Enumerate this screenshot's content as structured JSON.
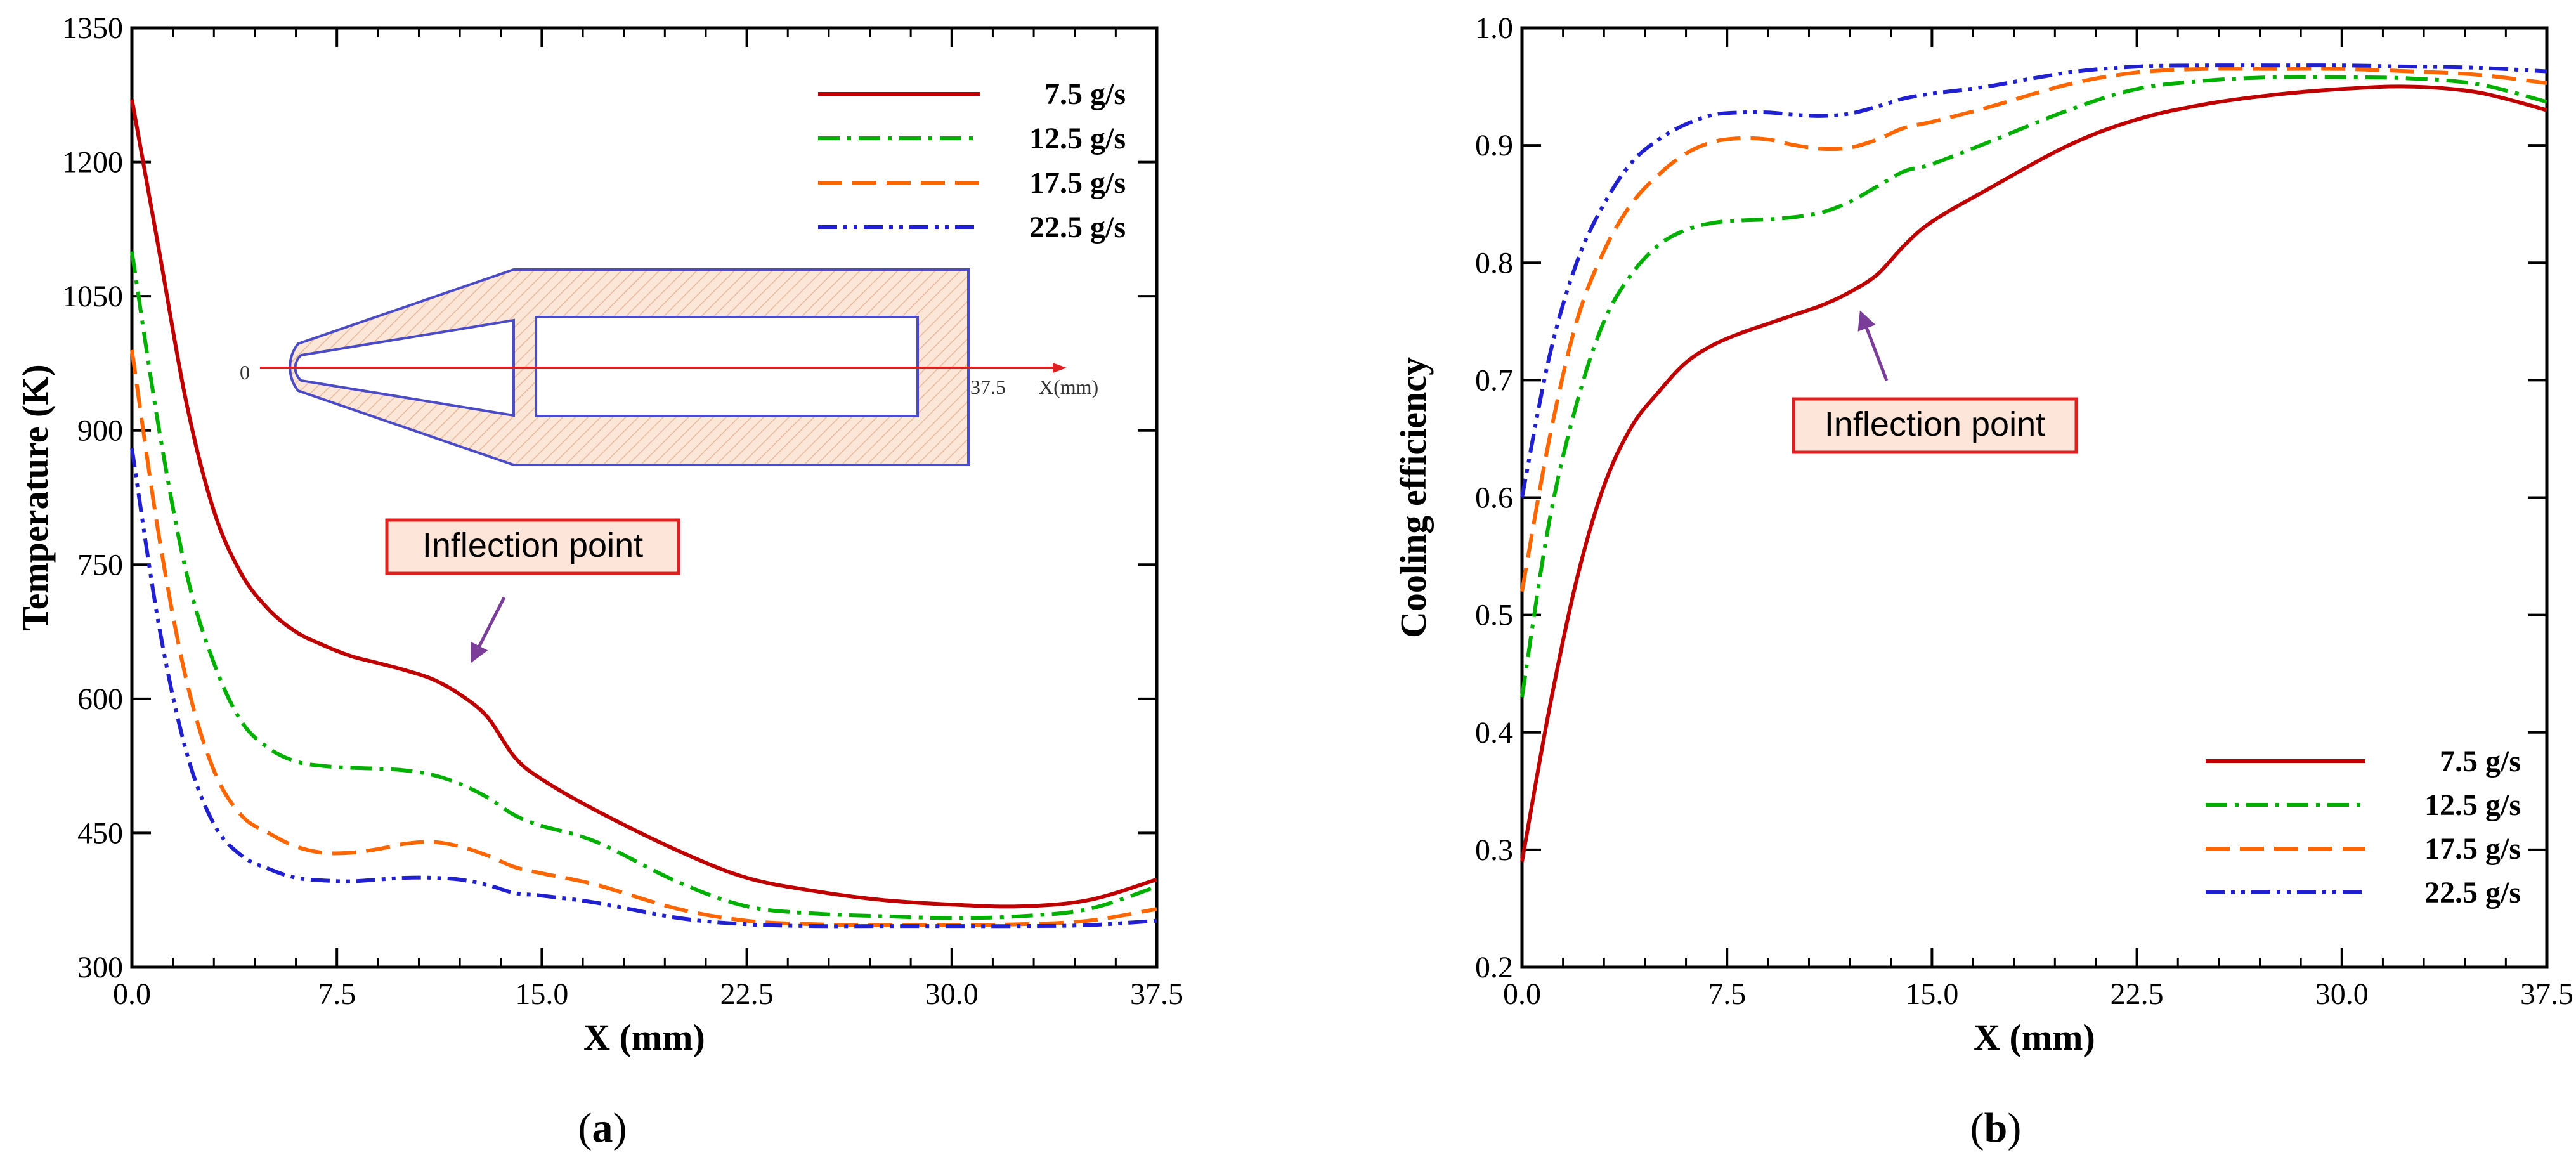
{
  "chart_data": [
    {
      "type": "line",
      "panel_label": "a",
      "xlabel": "X (mm)",
      "ylabel": "Temperature (K)",
      "xlim": [
        0,
        37.5
      ],
      "ylim": [
        300,
        1350
      ],
      "x_ticks": [
        0.0,
        7.5,
        15.0,
        22.5,
        30.0,
        37.5
      ],
      "x_tick_labels": [
        "0.0",
        "7.5",
        "15.0",
        "22.5",
        "30.0",
        "37.5"
      ],
      "y_ticks": [
        300,
        450,
        600,
        750,
        900,
        1050,
        1200,
        1350
      ],
      "y_tick_labels": [
        "300",
        "450",
        "600",
        "750",
        "900",
        "1050",
        "1200",
        "1350"
      ],
      "legend_position": "top-right",
      "annotation": {
        "text": "Inflection point",
        "x": 12.5,
        "y": 630
      },
      "inset": {
        "zero_label": "0",
        "end_label": "37.5",
        "axis_label": "X(mm)"
      },
      "series": [
        {
          "name": "7.5 g/s",
          "color": "#c00000",
          "dash": "solid",
          "points": [
            [
              0,
              1270
            ],
            [
              1,
              1100
            ],
            [
              2,
              930
            ],
            [
              3,
              810
            ],
            [
              4,
              740
            ],
            [
              5,
              700
            ],
            [
              6,
              675
            ],
            [
              7,
              660
            ],
            [
              8,
              648
            ],
            [
              9,
              640
            ],
            [
              10,
              632
            ],
            [
              11,
              622
            ],
            [
              12,
              605
            ],
            [
              13,
              580
            ],
            [
              14,
              535
            ],
            [
              15,
              510
            ],
            [
              17,
              475
            ],
            [
              20,
              430
            ],
            [
              22.5,
              400
            ],
            [
              25,
              385
            ],
            [
              27.5,
              375
            ],
            [
              30,
              370
            ],
            [
              32.5,
              368
            ],
            [
              35,
              375
            ],
            [
              37.5,
              398
            ]
          ]
        },
        {
          "name": "12.5 g/s",
          "color": "#00b000",
          "dash": "dashdot",
          "points": [
            [
              0,
              1100
            ],
            [
              1,
              900
            ],
            [
              2,
              740
            ],
            [
              3,
              640
            ],
            [
              4,
              575
            ],
            [
              5,
              545
            ],
            [
              6,
              530
            ],
            [
              7,
              525
            ],
            [
              8,
              523
            ],
            [
              9,
              522
            ],
            [
              10,
              520
            ],
            [
              11,
              515
            ],
            [
              12,
              505
            ],
            [
              13,
              490
            ],
            [
              14,
              470
            ],
            [
              15,
              458
            ],
            [
              17,
              440
            ],
            [
              20,
              395
            ],
            [
              22.5,
              368
            ],
            [
              25,
              360
            ],
            [
              27.5,
              357
            ],
            [
              30,
              355
            ],
            [
              32.5,
              357
            ],
            [
              35,
              365
            ],
            [
              37.5,
              390
            ]
          ]
        },
        {
          "name": "17.5 g/s",
          "color": "#ff6600",
          "dash": "dash",
          "points": [
            [
              0,
              990
            ],
            [
              1,
              780
            ],
            [
              2,
              620
            ],
            [
              3,
              520
            ],
            [
              4,
              470
            ],
            [
              5,
              450
            ],
            [
              6,
              435
            ],
            [
              7,
              428
            ],
            [
              8,
              428
            ],
            [
              9,
              432
            ],
            [
              10,
              438
            ],
            [
              11,
              440
            ],
            [
              12,
              435
            ],
            [
              13,
              425
            ],
            [
              14,
              412
            ],
            [
              15,
              405
            ],
            [
              17,
              392
            ],
            [
              20,
              365
            ],
            [
              22.5,
              352
            ],
            [
              25,
              348
            ],
            [
              27.5,
              347
            ],
            [
              30,
              347
            ],
            [
              32.5,
              348
            ],
            [
              35,
              352
            ],
            [
              37.5,
              365
            ]
          ]
        },
        {
          "name": "22.5 g/s",
          "color": "#2020d0",
          "dash": "dashdotdot",
          "points": [
            [
              0,
              880
            ],
            [
              1,
              680
            ],
            [
              2,
              540
            ],
            [
              3,
              460
            ],
            [
              4,
              425
            ],
            [
              5,
              410
            ],
            [
              6,
              400
            ],
            [
              7,
              397
            ],
            [
              8,
              396
            ],
            [
              9,
              398
            ],
            [
              10,
              400
            ],
            [
              11,
              400
            ],
            [
              12,
              398
            ],
            [
              13,
              392
            ],
            [
              14,
              383
            ],
            [
              15,
              380
            ],
            [
              17,
              372
            ],
            [
              20,
              355
            ],
            [
              22.5,
              348
            ],
            [
              25,
              346
            ],
            [
              27.5,
              346
            ],
            [
              30,
              346
            ],
            [
              32.5,
              346
            ],
            [
              35,
              347
            ],
            [
              37.5,
              352
            ]
          ]
        }
      ]
    },
    {
      "type": "line",
      "panel_label": "b",
      "xlabel": "X (mm)",
      "ylabel": "Cooling efficiency",
      "xlim": [
        0,
        37.5
      ],
      "ylim": [
        0.2,
        1.0
      ],
      "x_ticks": [
        0.0,
        7.5,
        15.0,
        22.5,
        30.0,
        37.5
      ],
      "x_tick_labels": [
        "0.0",
        "7.5",
        "15.0",
        "22.5",
        "30.0",
        "37.5"
      ],
      "y_ticks": [
        0.2,
        0.3,
        0.4,
        0.5,
        0.6,
        0.7,
        0.8,
        0.9,
        1.0
      ],
      "y_tick_labels": [
        "0.2",
        "0.3",
        "0.4",
        "0.5",
        "0.6",
        "0.7",
        "0.8",
        "0.9",
        "1.0"
      ],
      "legend_position": "bottom-right",
      "annotation": {
        "text": "Inflection point",
        "x": 12.5,
        "y": 0.78
      },
      "series": [
        {
          "name": "7.5 g/s",
          "color": "#c00000",
          "dash": "solid",
          "points": [
            [
              0,
              0.29
            ],
            [
              1,
              0.42
            ],
            [
              2,
              0.53
            ],
            [
              3,
              0.61
            ],
            [
              4,
              0.66
            ],
            [
              5,
              0.69
            ],
            [
              6,
              0.715
            ],
            [
              7,
              0.73
            ],
            [
              8,
              0.74
            ],
            [
              9,
              0.748
            ],
            [
              10,
              0.756
            ],
            [
              11,
              0.764
            ],
            [
              12,
              0.775
            ],
            [
              13,
              0.79
            ],
            [
              14,
              0.815
            ],
            [
              15,
              0.835
            ],
            [
              17,
              0.862
            ],
            [
              20,
              0.9
            ],
            [
              22.5,
              0.922
            ],
            [
              25,
              0.935
            ],
            [
              27.5,
              0.943
            ],
            [
              30,
              0.948
            ],
            [
              32.5,
              0.95
            ],
            [
              35,
              0.945
            ],
            [
              37.5,
              0.93
            ]
          ]
        },
        {
          "name": "12.5 g/s",
          "color": "#00b000",
          "dash": "dashdot",
          "points": [
            [
              0,
              0.43
            ],
            [
              1,
              0.58
            ],
            [
              2,
              0.68
            ],
            [
              3,
              0.75
            ],
            [
              4,
              0.79
            ],
            [
              5,
              0.815
            ],
            [
              6,
              0.828
            ],
            [
              7,
              0.834
            ],
            [
              8,
              0.836
            ],
            [
              9,
              0.837
            ],
            [
              10,
              0.839
            ],
            [
              11,
              0.843
            ],
            [
              12,
              0.852
            ],
            [
              13,
              0.865
            ],
            [
              14,
              0.878
            ],
            [
              15,
              0.884
            ],
            [
              17,
              0.902
            ],
            [
              20,
              0.93
            ],
            [
              22.5,
              0.948
            ],
            [
              25,
              0.955
            ],
            [
              27.5,
              0.958
            ],
            [
              30,
              0.958
            ],
            [
              32.5,
              0.957
            ],
            [
              35,
              0.952
            ],
            [
              37.5,
              0.937
            ]
          ]
        },
        {
          "name": "17.5 g/s",
          "color": "#ff6600",
          "dash": "dash",
          "points": [
            [
              0,
              0.52
            ],
            [
              1,
              0.65
            ],
            [
              2,
              0.75
            ],
            [
              3,
              0.81
            ],
            [
              4,
              0.85
            ],
            [
              5,
              0.875
            ],
            [
              6,
              0.893
            ],
            [
              7,
              0.903
            ],
            [
              8,
              0.906
            ],
            [
              9,
              0.905
            ],
            [
              10,
              0.9
            ],
            [
              11,
              0.897
            ],
            [
              12,
              0.898
            ],
            [
              13,
              0.905
            ],
            [
              14,
              0.915
            ],
            [
              15,
              0.92
            ],
            [
              17,
              0.932
            ],
            [
              20,
              0.952
            ],
            [
              22.5,
              0.962
            ],
            [
              25,
              0.965
            ],
            [
              27.5,
              0.965
            ],
            [
              30,
              0.965
            ],
            [
              32.5,
              0.963
            ],
            [
              35,
              0.96
            ],
            [
              37.5,
              0.953
            ]
          ]
        },
        {
          "name": "22.5 g/s",
          "color": "#2020d0",
          "dash": "dashdotdot",
          "points": [
            [
              0,
              0.6
            ],
            [
              1,
              0.72
            ],
            [
              2,
              0.8
            ],
            [
              3,
              0.85
            ],
            [
              4,
              0.885
            ],
            [
              5,
              0.905
            ],
            [
              6,
              0.918
            ],
            [
              7,
              0.926
            ],
            [
              8,
              0.928
            ],
            [
              9,
              0.928
            ],
            [
              10,
              0.926
            ],
            [
              11,
              0.925
            ],
            [
              12,
              0.927
            ],
            [
              13,
              0.933
            ],
            [
              14,
              0.94
            ],
            [
              15,
              0.944
            ],
            [
              17,
              0.95
            ],
            [
              20,
              0.962
            ],
            [
              22.5,
              0.967
            ],
            [
              25,
              0.968
            ],
            [
              27.5,
              0.968
            ],
            [
              30,
              0.968
            ],
            [
              32.5,
              0.967
            ],
            [
              35,
              0.966
            ],
            [
              37.5,
              0.963
            ]
          ]
        }
      ]
    }
  ]
}
